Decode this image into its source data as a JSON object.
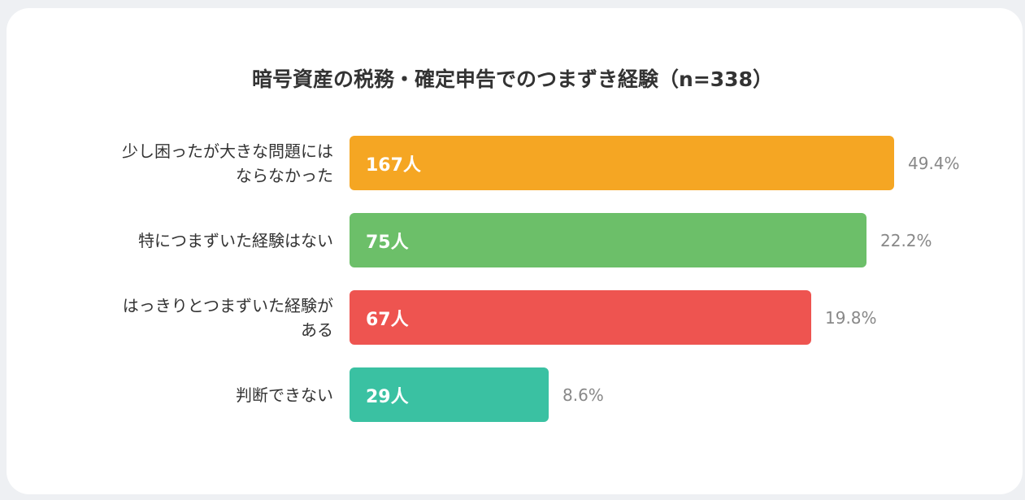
{
  "chart_data": {
    "type": "bar",
    "orientation": "horizontal",
    "title": "暗号資産の税務・確定申告でのつまずき経験（n=338）",
    "categories": [
      "少し困ったが大きな問題には\nならなかった",
      "特につまずいた経験はない",
      "はっきりとつまずいた経験が\nある",
      "判断できない"
    ],
    "values": [
      167,
      75,
      67,
      29
    ],
    "count_labels": [
      "167人",
      "75人",
      "67人",
      "29人"
    ],
    "percent_labels": [
      "49.4%",
      "22.2%",
      "19.8%",
      "8.6%"
    ],
    "colors": [
      "#F5A623",
      "#6CBF69",
      "#EE5450",
      "#3AC1A2"
    ],
    "grid": false,
    "legend": "none"
  }
}
